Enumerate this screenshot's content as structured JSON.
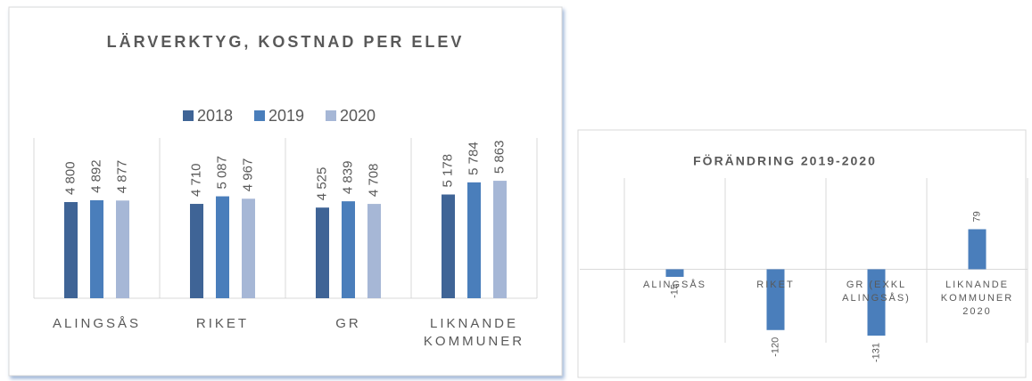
{
  "chart_data": [
    {
      "type": "bar",
      "title": "LÄRVERKTYG, KOSTNAD PER ELEV",
      "categories": [
        "ALINGSÅS",
        "RIKET",
        "GR",
        "LIKNANDE KOMMUNER"
      ],
      "series": [
        {
          "name": "2018",
          "color": "#3f6496",
          "values": [
            4800,
            4710,
            4525,
            5178
          ],
          "value_labels": [
            "4 800",
            "4 710",
            "4 525",
            "5 178"
          ]
        },
        {
          "name": "2019",
          "color": "#4a7ebb",
          "values": [
            4892,
            5087,
            4839,
            5784
          ],
          "value_labels": [
            "4 892",
            "5 087",
            "4 839",
            "5 784"
          ]
        },
        {
          "name": "2020",
          "color": "#a6b7d6",
          "values": [
            4877,
            4967,
            4708,
            5863
          ],
          "value_labels": [
            "4 877",
            "4 967",
            "4 708",
            "5 863"
          ]
        }
      ],
      "ylim": [
        0,
        8000
      ],
      "legend": "top"
    },
    {
      "type": "bar",
      "title": "FÖRÄNDRING 2019-2020",
      "categories": [
        "ALINGSÅS",
        "RIKET",
        "GR (EXKL ALINGSÅS)",
        "LIKNANDE KOMMUNER 2020"
      ],
      "values": [
        -15,
        -120,
        -131,
        79
      ],
      "color": "#4a7ebb",
      "ylim": [
        -145,
        180
      ]
    }
  ]
}
